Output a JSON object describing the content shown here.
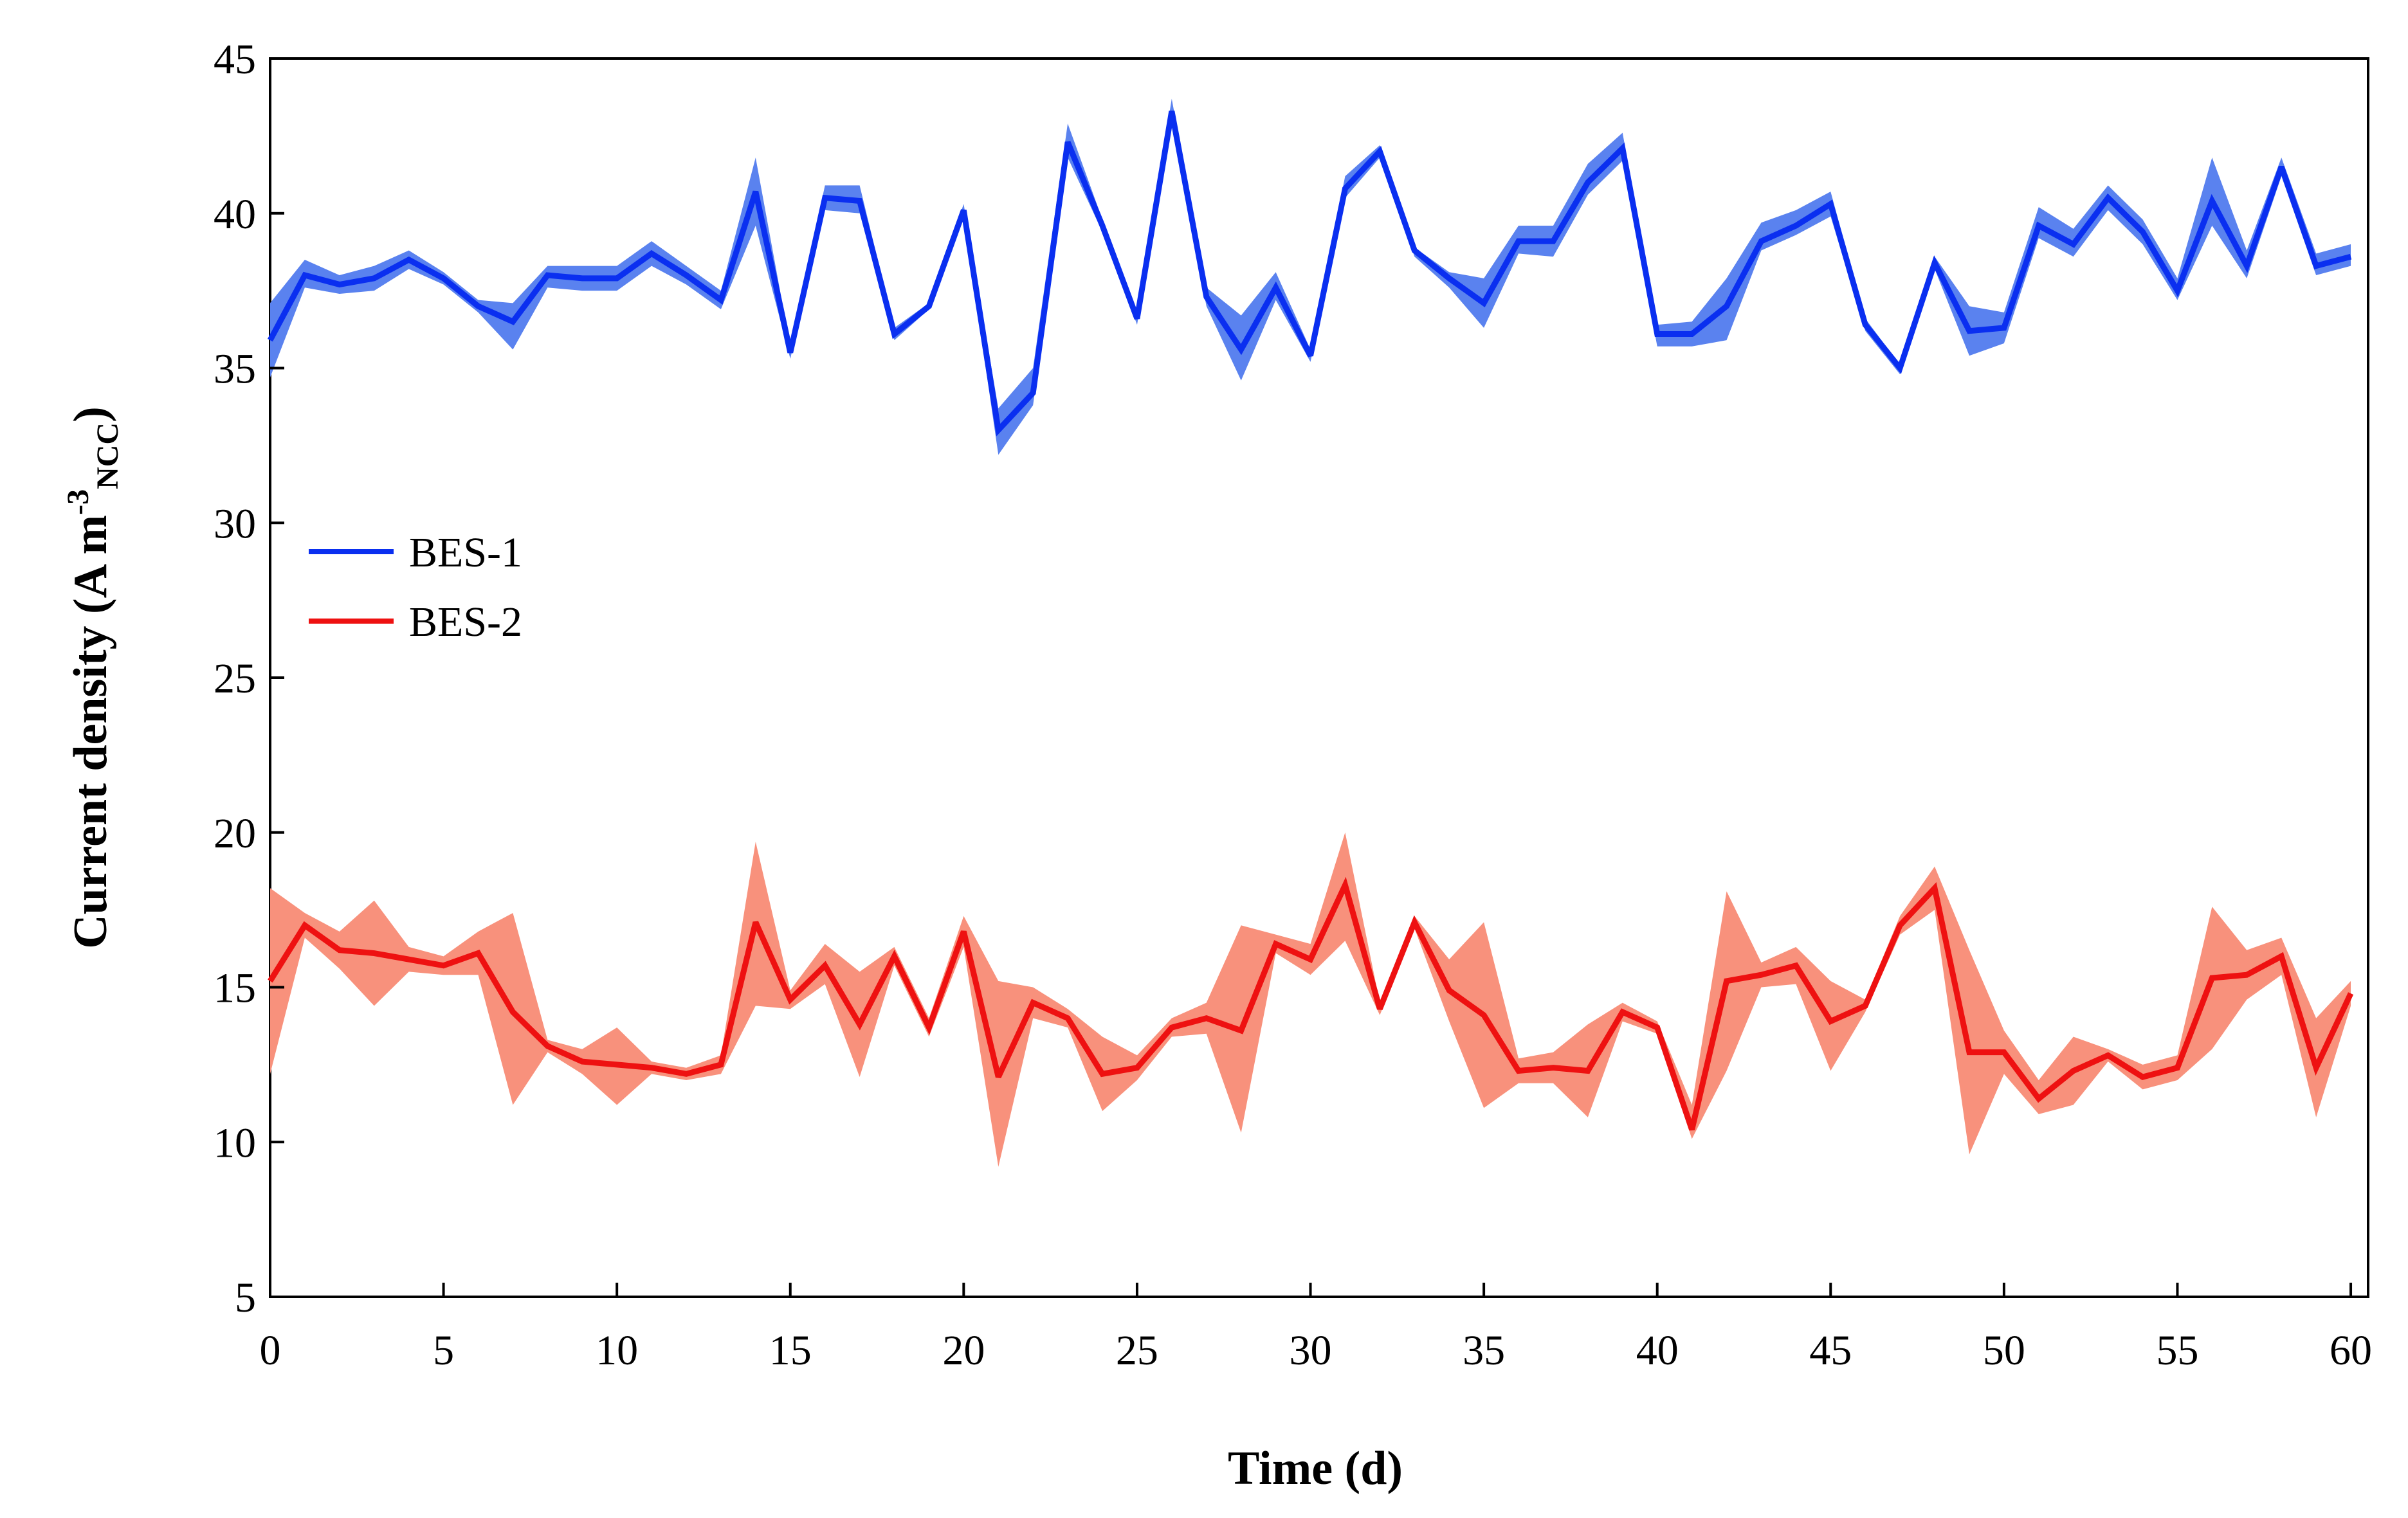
{
  "chart_data": {
    "type": "line",
    "title": "",
    "xlabel": "Time (d)",
    "ylabel": {
      "main": "Current density (A m",
      "sup": "-3",
      "sub": "NCC",
      "close": ")"
    },
    "xlim": [
      0,
      60.5
    ],
    "ylim": [
      5,
      45
    ],
    "xticks": [
      0,
      5,
      10,
      15,
      20,
      25,
      30,
      35,
      40,
      45,
      50,
      55,
      60
    ],
    "yticks": [
      5,
      10,
      15,
      20,
      25,
      30,
      35,
      40,
      45
    ],
    "grid": false,
    "legend_position": "middle-left",
    "series": [
      {
        "name": "BES-1",
        "color": "#0a2ff0",
        "band_color": "#5a82ef",
        "x": [
          0,
          1,
          2,
          3,
          4,
          5,
          6,
          7,
          8,
          9,
          10,
          11,
          12,
          13,
          14,
          15,
          16,
          17,
          18,
          19,
          20,
          21,
          22,
          23,
          24,
          25,
          26,
          27,
          28,
          29,
          30,
          31,
          32,
          33,
          34,
          35,
          36,
          37,
          38,
          39,
          40,
          41,
          42,
          43,
          44,
          45,
          46,
          47,
          48,
          49,
          50,
          51,
          52,
          53,
          54,
          55,
          56,
          57,
          58,
          59,
          60
        ],
        "values": [
          35.9,
          38.0,
          37.7,
          37.9,
          38.5,
          37.9,
          37.0,
          36.5,
          38.0,
          37.9,
          37.9,
          38.7,
          38.0,
          37.2,
          40.7,
          35.5,
          40.5,
          40.4,
          36.1,
          37.0,
          40.1,
          33.0,
          34.2,
          42.3,
          39.6,
          36.6,
          43.3,
          37.3,
          35.6,
          37.6,
          35.4,
          40.8,
          42.0,
          38.8,
          37.9,
          37.1,
          39.1,
          39.1,
          41.0,
          42.1,
          36.1,
          36.1,
          37.0,
          39.1,
          39.6,
          40.3,
          36.4,
          35.0,
          38.4,
          36.2,
          36.3,
          39.6,
          39.0,
          40.5,
          39.4,
          37.5,
          40.4,
          38.3,
          41.5,
          38.3,
          38.6
        ],
        "upper": [
          37.1,
          38.5,
          38.0,
          38.3,
          38.8,
          38.1,
          37.2,
          37.1,
          38.3,
          38.3,
          38.3,
          39.1,
          38.3,
          37.5,
          41.8,
          35.7,
          40.9,
          40.9,
          36.3,
          37.1,
          40.3,
          33.7,
          35.0,
          42.9,
          39.8,
          36.8,
          43.7,
          37.6,
          36.7,
          38.1,
          35.6,
          41.2,
          42.2,
          38.9,
          38.1,
          37.9,
          39.6,
          39.6,
          41.6,
          42.6,
          36.4,
          36.5,
          37.9,
          39.7,
          40.1,
          40.7,
          36.6,
          35.1,
          38.6,
          37.0,
          36.8,
          40.2,
          39.5,
          40.9,
          39.8,
          37.9,
          41.8,
          38.8,
          41.8,
          38.7,
          39.0
        ],
        "lower": [
          34.7,
          37.6,
          37.4,
          37.5,
          38.2,
          37.7,
          36.8,
          35.6,
          37.6,
          37.5,
          37.5,
          38.3,
          37.7,
          36.9,
          39.6,
          35.3,
          40.1,
          40.0,
          35.9,
          36.9,
          39.9,
          32.2,
          33.8,
          41.8,
          39.4,
          36.4,
          42.8,
          37.0,
          34.6,
          37.2,
          35.2,
          40.5,
          41.8,
          38.6,
          37.6,
          36.3,
          38.7,
          38.6,
          40.6,
          41.7,
          35.7,
          35.7,
          35.9,
          38.8,
          39.3,
          39.9,
          36.2,
          34.8,
          38.2,
          35.4,
          35.8,
          39.2,
          38.6,
          40.1,
          39.0,
          37.2,
          39.6,
          37.9,
          41.2,
          38.0,
          38.3
        ]
      },
      {
        "name": "BES-2",
        "color": "#ee1111",
        "band_color": "#f8917c",
        "x": [
          0,
          1,
          2,
          3,
          4,
          5,
          6,
          7,
          8,
          9,
          10,
          11,
          12,
          13,
          14,
          15,
          16,
          17,
          18,
          19,
          20,
          21,
          22,
          23,
          24,
          25,
          26,
          27,
          28,
          29,
          30,
          31,
          32,
          33,
          34,
          35,
          36,
          37,
          38,
          39,
          40,
          41,
          42,
          43,
          44,
          45,
          46,
          47,
          48,
          49,
          50,
          51,
          52,
          53,
          54,
          55,
          56,
          57,
          58,
          59,
          60
        ],
        "values": [
          15.2,
          17.0,
          16.2,
          16.1,
          15.9,
          15.7,
          16.1,
          14.2,
          13.1,
          12.6,
          12.5,
          12.4,
          12.2,
          12.5,
          17.1,
          14.6,
          15.7,
          13.8,
          16.0,
          13.7,
          16.8,
          12.1,
          14.5,
          14.0,
          12.2,
          12.4,
          13.7,
          14.0,
          13.6,
          16.4,
          15.9,
          18.3,
          14.3,
          17.1,
          14.9,
          14.1,
          12.3,
          12.4,
          12.3,
          14.2,
          13.7,
          10.4,
          15.2,
          15.4,
          15.7,
          13.9,
          14.4,
          17.0,
          18.2,
          12.9,
          12.9,
          11.4,
          12.3,
          12.8,
          12.1,
          12.4,
          15.3,
          15.4,
          16.0,
          12.4,
          14.8
        ],
        "upper": [
          18.2,
          17.4,
          16.8,
          17.8,
          16.3,
          16.0,
          16.8,
          17.4,
          13.3,
          13.0,
          13.7,
          12.6,
          12.4,
          12.8,
          19.7,
          14.9,
          16.4,
          15.5,
          16.3,
          14.0,
          17.3,
          15.2,
          15.0,
          14.3,
          13.4,
          12.8,
          14.0,
          14.5,
          17.0,
          16.7,
          16.4,
          20.0,
          14.5,
          17.3,
          15.9,
          17.1,
          12.7,
          12.9,
          13.8,
          14.5,
          13.9,
          11.2,
          18.1,
          15.8,
          16.3,
          15.2,
          14.6,
          17.3,
          18.9,
          16.2,
          13.6,
          12.0,
          13.4,
          13.0,
          12.5,
          12.8,
          17.6,
          16.2,
          16.6,
          14.0,
          15.2
        ],
        "lower": [
          12.2,
          16.6,
          15.6,
          14.4,
          15.5,
          15.4,
          15.4,
          11.2,
          12.9,
          12.2,
          11.2,
          12.2,
          12.0,
          12.2,
          14.4,
          14.3,
          15.1,
          12.1,
          15.7,
          13.4,
          16.3,
          9.2,
          14.0,
          13.7,
          11.0,
          12.0,
          13.4,
          13.5,
          10.3,
          16.1,
          15.4,
          16.5,
          14.1,
          16.9,
          13.9,
          11.1,
          11.9,
          11.9,
          10.8,
          13.9,
          13.5,
          10.1,
          12.3,
          15.0,
          15.1,
          12.3,
          14.2,
          16.7,
          17.5,
          9.6,
          12.2,
          10.9,
          11.2,
          12.6,
          11.7,
          12.0,
          13.0,
          14.6,
          15.4,
          10.8,
          14.4
        ]
      }
    ]
  }
}
